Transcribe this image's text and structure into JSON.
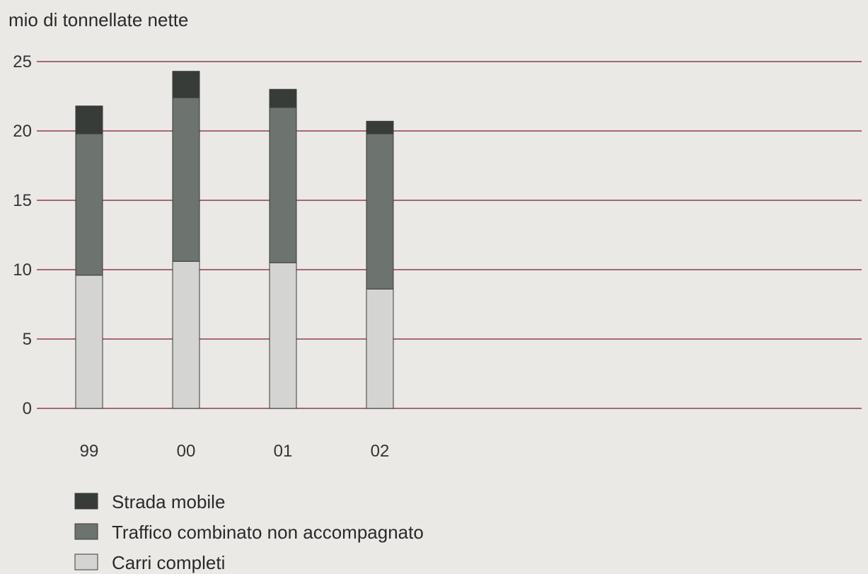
{
  "chart_data": {
    "type": "bar",
    "stacked": true,
    "ylabel": "mio di tonnellate nette",
    "ylim": [
      0,
      25
    ],
    "yticks": [
      0,
      5,
      10,
      15,
      20,
      25
    ],
    "grid": true,
    "legend_position": "bottom-left",
    "categories": [
      "99",
      "00",
      "01",
      "02"
    ],
    "series": [
      {
        "name": "Carri completi",
        "color": "#d4d4d2",
        "values": [
          9.6,
          10.6,
          10.5,
          8.6
        ]
      },
      {
        "name": "Traffico combinato non accompagnato",
        "color": "#6d736f",
        "values": [
          10.2,
          11.8,
          11.2,
          11.2
        ]
      },
      {
        "name": "Strada mobile",
        "color": "#373c39",
        "values": [
          2.0,
          1.9,
          1.3,
          0.9
        ]
      }
    ],
    "gridColor": "#8f3d4d"
  }
}
